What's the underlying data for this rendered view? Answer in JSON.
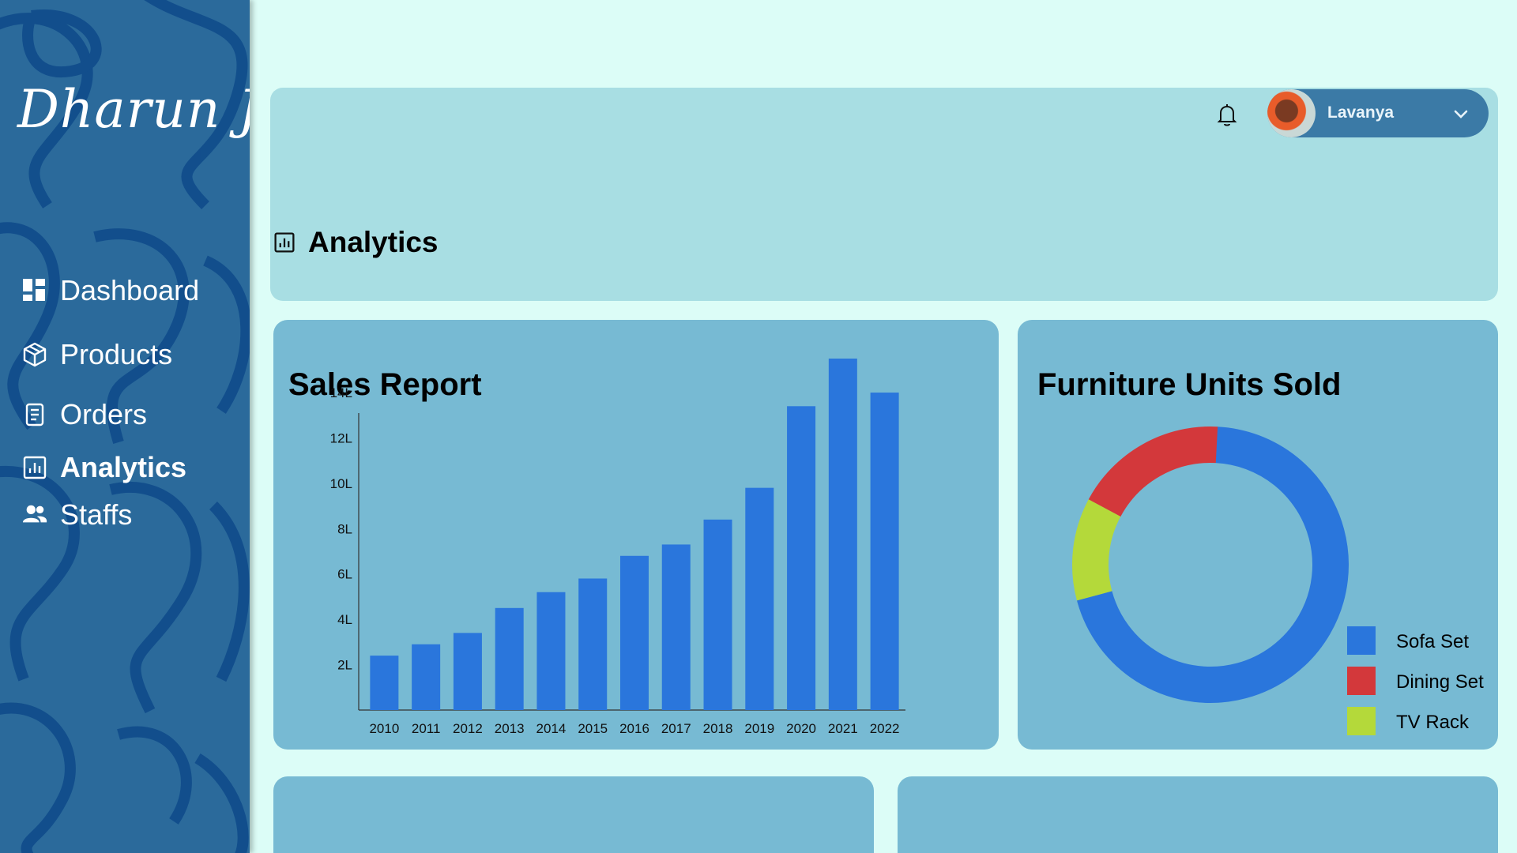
{
  "sidebar": {
    "logo_text": "Dharun J",
    "items": [
      {
        "label": "Dashboard",
        "icon": "dashboard-icon",
        "active": false
      },
      {
        "label": "Products",
        "icon": "box-icon",
        "active": false
      },
      {
        "label": "Orders",
        "icon": "document-icon",
        "active": false
      },
      {
        "label": "Analytics",
        "icon": "bar-chart-icon",
        "active": true
      },
      {
        "label": "Staffs",
        "icon": "people-icon",
        "active": false
      }
    ]
  },
  "header": {
    "user_name": "Lavanya",
    "page_title": "Analytics"
  },
  "sales_report": {
    "title": "Sales Report"
  },
  "units_sold": {
    "title": "Furniture Units Sold"
  },
  "colors": {
    "sidebar": "#2b6a9b",
    "bar": "#2a76dc",
    "sofa": "#2a76dc",
    "dining": "#d3383b",
    "tv_rack": "#b4d93a"
  },
  "chart_data": [
    {
      "type": "bar",
      "title": "Sales Report",
      "categories": [
        "2010",
        "2011",
        "2012",
        "2013",
        "2014",
        "2015",
        "2016",
        "2017",
        "2018",
        "2019",
        "2020",
        "2021",
        "2022"
      ],
      "values": [
        2.4,
        2.9,
        3.4,
        4.5,
        5.2,
        5.8,
        6.8,
        7.3,
        8.4,
        9.8,
        13.4,
        15.5,
        14.0
      ],
      "ytick_labels": [
        "2L",
        "4L",
        "6L",
        "8L",
        "10L",
        "12L",
        "14L"
      ],
      "ytick_values": [
        2,
        4,
        6,
        8,
        10,
        12,
        14
      ],
      "ylim": [
        0,
        15.5
      ],
      "unit": "L"
    },
    {
      "type": "pie",
      "title": "Furniture Units Sold",
      "labels": [
        "Sofa Set",
        "Dining Set",
        "TV Rack"
      ],
      "values": [
        70,
        18,
        12
      ],
      "legend": "right"
    }
  ]
}
